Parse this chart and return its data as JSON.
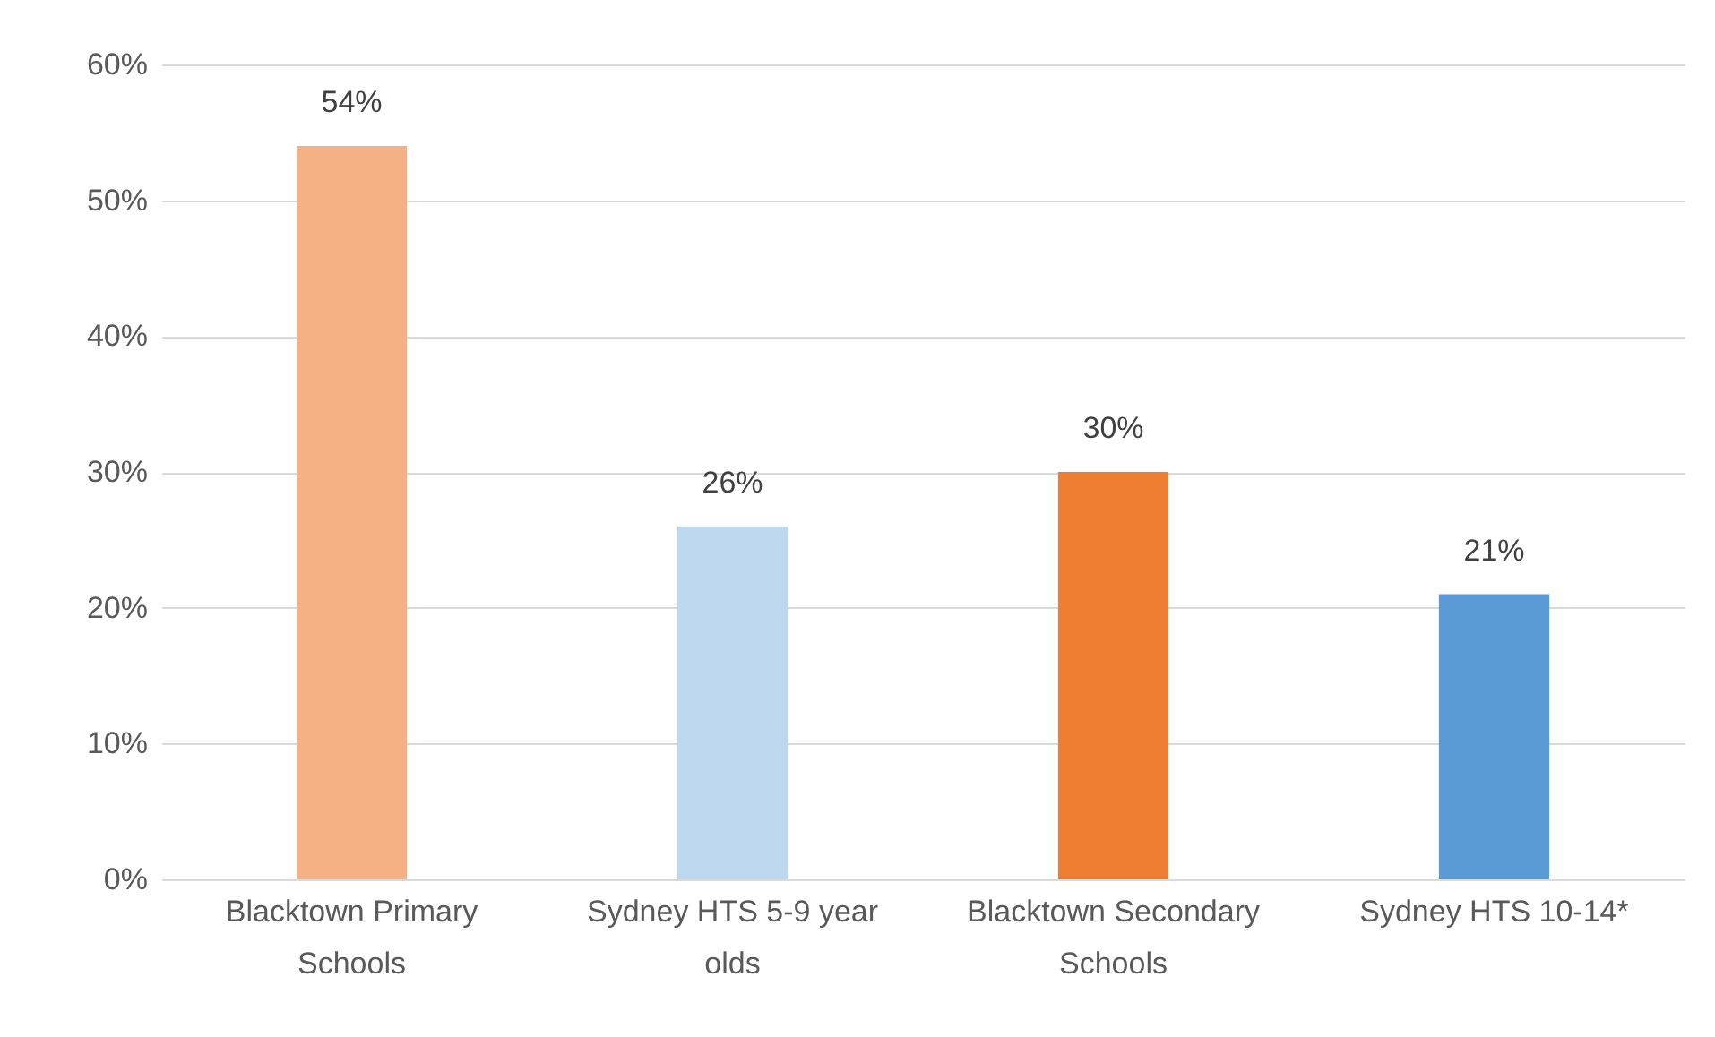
{
  "chart_data": {
    "type": "bar",
    "categories": [
      "Blacktown Primary Schools",
      "Sydney HTS 5-9 year olds",
      "Blacktown Secondary Schools",
      "Sydney HTS 10-14*"
    ],
    "values": [
      54,
      26,
      30,
      21
    ],
    "colors": [
      "#f4b183",
      "#bdd7ee",
      "#ed7d31",
      "#5b9bd5"
    ],
    "ylim": [
      0,
      60
    ],
    "yticks": [
      {
        "value": 0,
        "label": "0%"
      },
      {
        "value": 10,
        "label": "10%"
      },
      {
        "value": 20,
        "label": "20%"
      },
      {
        "value": 30,
        "label": "30%"
      },
      {
        "value": 40,
        "label": "40%"
      },
      {
        "value": 50,
        "label": "50%"
      },
      {
        "value": 60,
        "label": "60%"
      }
    ],
    "value_labels": [
      "54%",
      "26%",
      "30%",
      "21%"
    ],
    "grid": "y"
  }
}
